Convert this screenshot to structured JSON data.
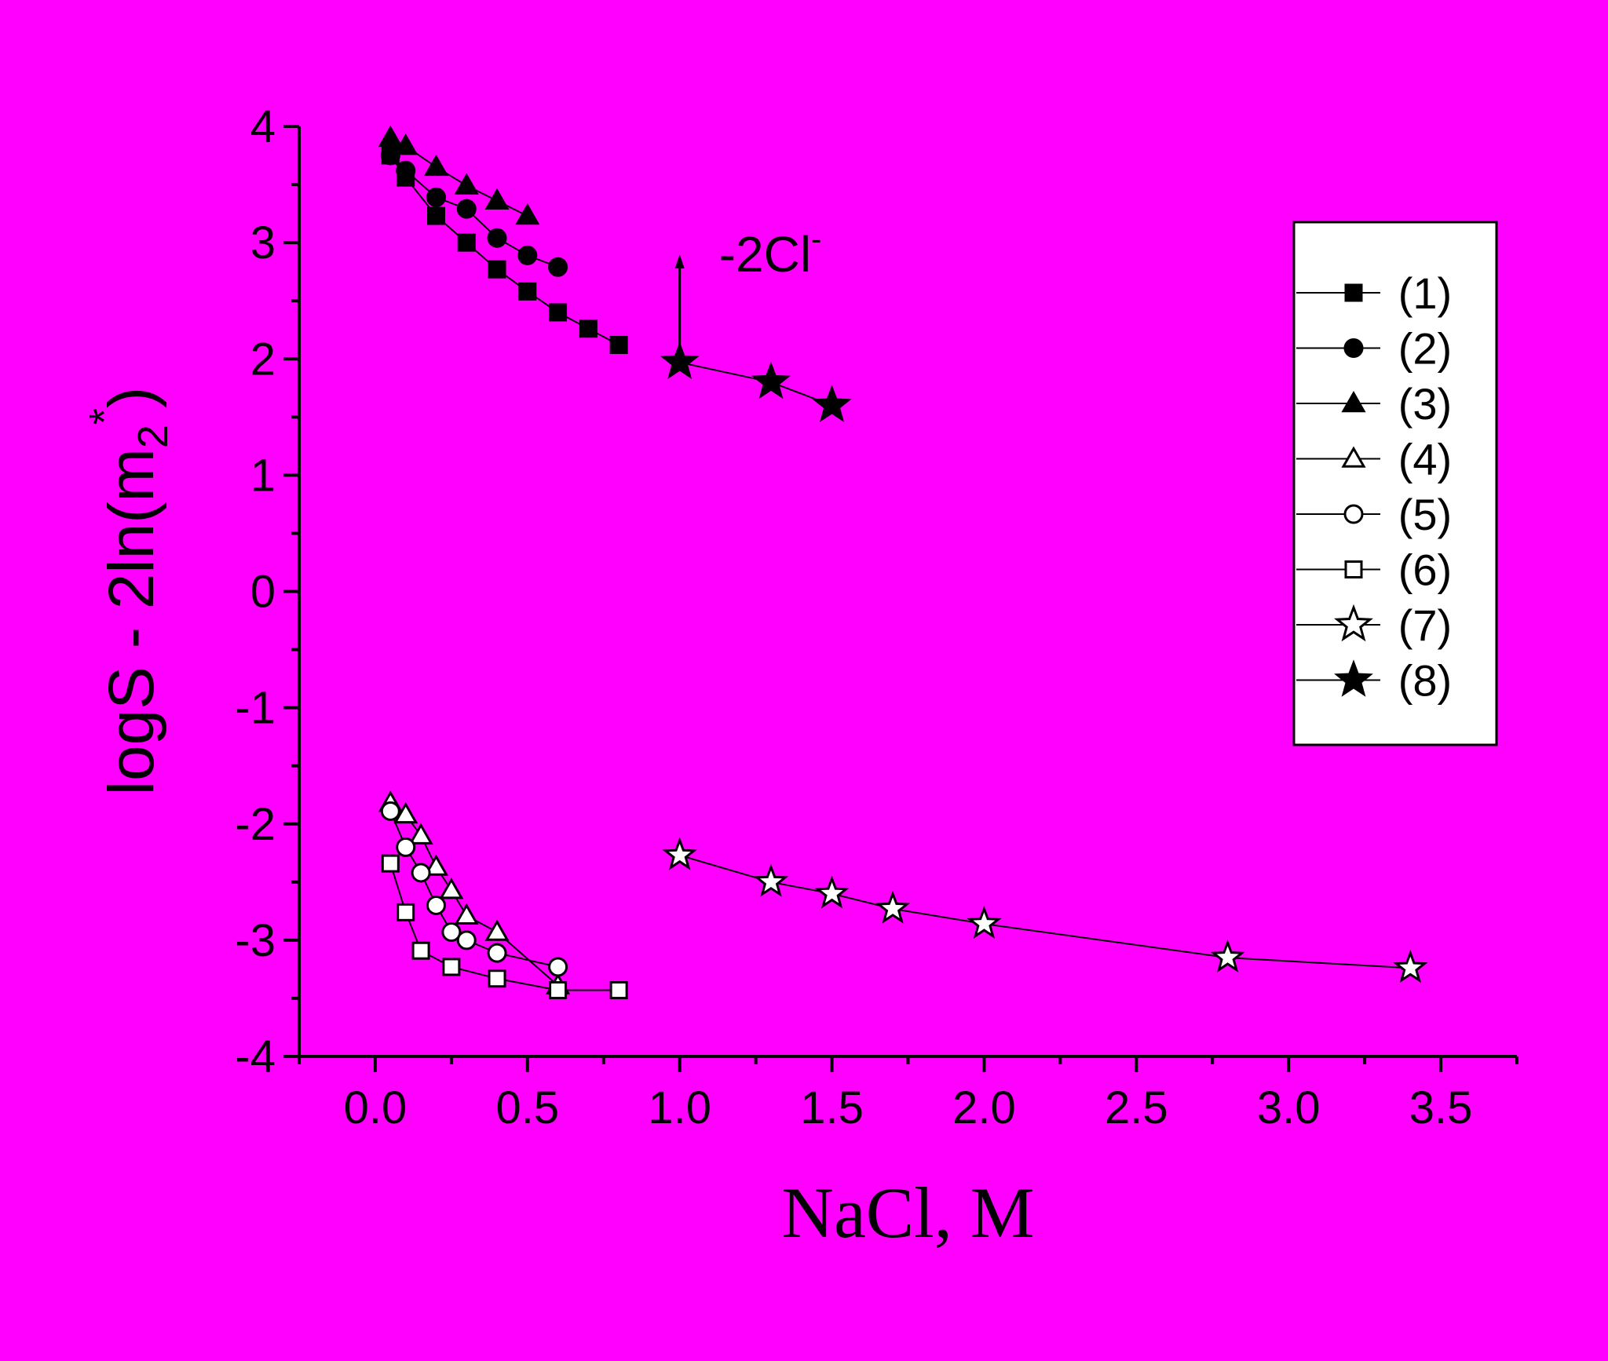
{
  "chart_data": {
    "type": "scatter",
    "background": "#FF00FF",
    "xlabel": "NaCl, M",
    "ylabel": "logS - 2ln(m2*)",
    "xlim": [
      -0.25,
      3.75
    ],
    "ylim": [
      -4,
      4
    ],
    "xticks": [
      0.0,
      0.5,
      1.0,
      1.5,
      2.0,
      2.5,
      3.0,
      3.5
    ],
    "xtick_labels": [
      "0.0",
      "0.5",
      "1.0",
      "1.5",
      "2.0",
      "2.5",
      "3.0",
      "3.5"
    ],
    "yticks": [
      -4,
      -3,
      -2,
      -1,
      0,
      1,
      2,
      3,
      4
    ],
    "ytick_labels": [
      "-4",
      "-3",
      "-2",
      "-1",
      "0",
      "1",
      "2",
      "3",
      "4"
    ],
    "grid": false,
    "legend_position": "right",
    "annotation": {
      "text": "-2Cl",
      "superscript": "-",
      "arrow_x": 1.0,
      "arrow_from": 2.0,
      "arrow_to": 2.9
    },
    "series": [
      {
        "name": "(1)",
        "marker": "square",
        "filled": true,
        "line": true,
        "x": [
          0.05,
          0.1,
          0.2,
          0.3,
          0.4,
          0.5,
          0.6,
          0.7,
          0.8
        ],
        "y": [
          3.75,
          3.56,
          3.23,
          3.0,
          2.77,
          2.58,
          2.4,
          2.26,
          2.12
        ]
      },
      {
        "name": "(2)",
        "marker": "circle",
        "filled": true,
        "line": true,
        "x": [
          0.05,
          0.1,
          0.2,
          0.3,
          0.4,
          0.5,
          0.6
        ],
        "y": [
          3.75,
          3.62,
          3.39,
          3.29,
          3.04,
          2.89,
          2.79
        ]
      },
      {
        "name": "(3)",
        "marker": "triangle",
        "filled": true,
        "line": true,
        "x": [
          0.05,
          0.1,
          0.2,
          0.3,
          0.4,
          0.5
        ],
        "y": [
          3.9,
          3.83,
          3.65,
          3.49,
          3.36,
          3.23
        ]
      },
      {
        "name": "(4)",
        "marker": "triangle",
        "filled": false,
        "line": true,
        "x": [
          0.05,
          0.1,
          0.15,
          0.2,
          0.25,
          0.3,
          0.4,
          0.6
        ],
        "y": [
          -1.82,
          -1.92,
          -2.1,
          -2.37,
          -2.57,
          -2.79,
          -2.93,
          -3.39
        ]
      },
      {
        "name": "(5)",
        "marker": "circle",
        "filled": false,
        "line": true,
        "x": [
          0.05,
          0.1,
          0.15,
          0.2,
          0.25,
          0.3,
          0.4,
          0.6
        ],
        "y": [
          -1.89,
          -2.2,
          -2.42,
          -2.7,
          -2.93,
          -3.0,
          -3.11,
          -3.23
        ]
      },
      {
        "name": "(6)",
        "marker": "square",
        "filled": false,
        "line": true,
        "x": [
          0.05,
          0.1,
          0.15,
          0.25,
          0.4,
          0.6,
          0.8
        ],
        "y": [
          -2.34,
          -2.76,
          -3.09,
          -3.23,
          -3.33,
          -3.43,
          -3.43
        ]
      },
      {
        "name": "(7)",
        "marker": "star",
        "filled": false,
        "line": true,
        "x": [
          1.0,
          1.3,
          1.5,
          1.7,
          2.0,
          2.8,
          3.4
        ],
        "y": [
          -2.27,
          -2.5,
          -2.6,
          -2.73,
          -2.86,
          -3.15,
          -3.24
        ]
      },
      {
        "name": "(8)",
        "marker": "star",
        "filled": true,
        "line": true,
        "x": [
          1.0,
          1.3,
          1.5
        ],
        "y": [
          1.97,
          1.8,
          1.6
        ]
      }
    ]
  }
}
